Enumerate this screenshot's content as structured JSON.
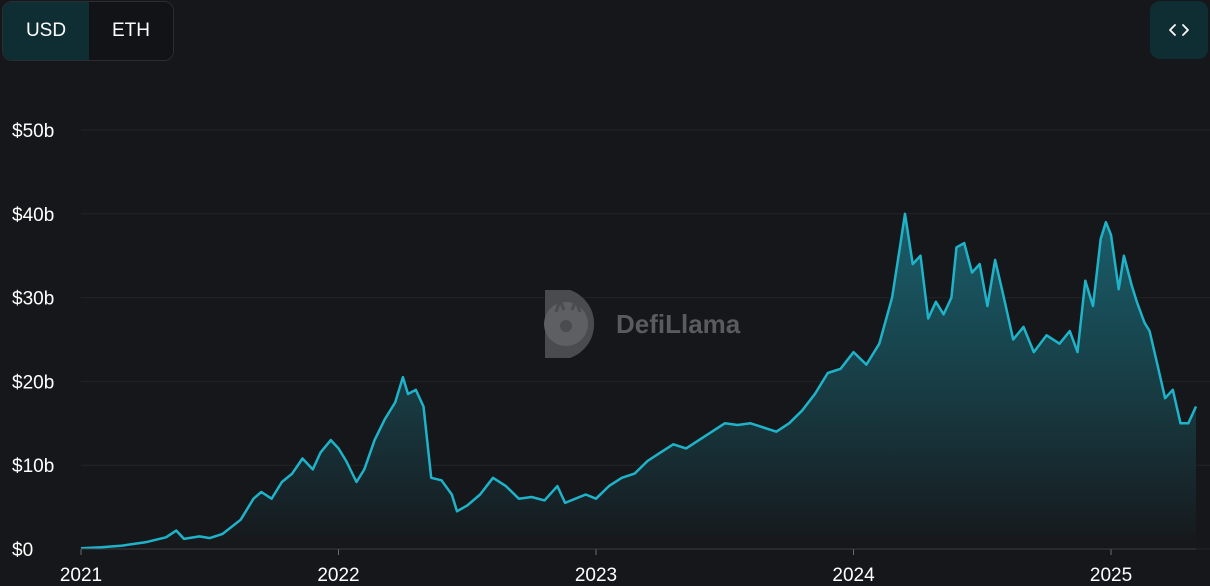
{
  "controls": {
    "currency_options": [
      "USD",
      "ETH"
    ],
    "selected_currency": "USD",
    "embed_icon": "code-brackets-icon"
  },
  "watermark": {
    "text": "DefiLlama",
    "logo_icon": "llama-logo-icon"
  },
  "colors": {
    "background": "#16171a",
    "line": "#1fb3c9",
    "area_top": "#1a6a78",
    "area_bottom": "#16171a",
    "grid": "#232428",
    "toggle_active": "#0f2e33"
  },
  "chart_data": {
    "type": "area",
    "title": "",
    "xlabel": "",
    "ylabel": "",
    "x_ticks": [
      "2021",
      "2022",
      "2023",
      "2024",
      "2025"
    ],
    "y_ticks": [
      "$0",
      "$10b",
      "$20b",
      "$30b",
      "$40b",
      "$50b"
    ],
    "ylim": [
      0,
      50
    ],
    "xlim": [
      2021.0,
      2025.33
    ],
    "grid": true,
    "legend": "none",
    "series": [
      {
        "unit": "billion USD",
        "points": [
          [
            2021.0,
            0.1
          ],
          [
            2021.08,
            0.2
          ],
          [
            2021.16,
            0.4
          ],
          [
            2021.25,
            0.8
          ],
          [
            2021.33,
            1.4
          ],
          [
            2021.37,
            2.2
          ],
          [
            2021.4,
            1.2
          ],
          [
            2021.46,
            1.5
          ],
          [
            2021.5,
            1.3
          ],
          [
            2021.55,
            1.8
          ],
          [
            2021.62,
            3.5
          ],
          [
            2021.67,
            6.0
          ],
          [
            2021.7,
            6.8
          ],
          [
            2021.74,
            6.0
          ],
          [
            2021.78,
            8.0
          ],
          [
            2021.82,
            9.0
          ],
          [
            2021.86,
            10.8
          ],
          [
            2021.9,
            9.5
          ],
          [
            2021.93,
            11.5
          ],
          [
            2021.97,
            13.0
          ],
          [
            2022.0,
            12.0
          ],
          [
            2022.03,
            10.5
          ],
          [
            2022.07,
            8.0
          ],
          [
            2022.1,
            9.5
          ],
          [
            2022.14,
            13.0
          ],
          [
            2022.18,
            15.5
          ],
          [
            2022.22,
            17.5
          ],
          [
            2022.25,
            20.5
          ],
          [
            2022.27,
            18.5
          ],
          [
            2022.3,
            19.0
          ],
          [
            2022.33,
            17.0
          ],
          [
            2022.36,
            8.5
          ],
          [
            2022.4,
            8.2
          ],
          [
            2022.44,
            6.5
          ],
          [
            2022.46,
            4.5
          ],
          [
            2022.5,
            5.2
          ],
          [
            2022.55,
            6.5
          ],
          [
            2022.6,
            8.5
          ],
          [
            2022.65,
            7.5
          ],
          [
            2022.7,
            6.0
          ],
          [
            2022.75,
            6.2
          ],
          [
            2022.8,
            5.8
          ],
          [
            2022.85,
            7.5
          ],
          [
            2022.88,
            5.5
          ],
          [
            2022.92,
            6.0
          ],
          [
            2022.96,
            6.5
          ],
          [
            2023.0,
            6.0
          ],
          [
            2023.05,
            7.5
          ],
          [
            2023.1,
            8.5
          ],
          [
            2023.15,
            9.0
          ],
          [
            2023.2,
            10.5
          ],
          [
            2023.25,
            11.5
          ],
          [
            2023.3,
            12.5
          ],
          [
            2023.35,
            12.0
          ],
          [
            2023.4,
            13.0
          ],
          [
            2023.45,
            14.0
          ],
          [
            2023.5,
            15.0
          ],
          [
            2023.55,
            14.8
          ],
          [
            2023.6,
            15.0
          ],
          [
            2023.65,
            14.5
          ],
          [
            2023.7,
            14.0
          ],
          [
            2023.75,
            15.0
          ],
          [
            2023.8,
            16.5
          ],
          [
            2023.85,
            18.5
          ],
          [
            2023.9,
            21.0
          ],
          [
            2023.95,
            21.5
          ],
          [
            2024.0,
            23.5
          ],
          [
            2024.05,
            22.0
          ],
          [
            2024.1,
            24.5
          ],
          [
            2024.15,
            30.0
          ],
          [
            2024.18,
            36.0
          ],
          [
            2024.2,
            40.0
          ],
          [
            2024.23,
            34.0
          ],
          [
            2024.26,
            35.0
          ],
          [
            2024.29,
            27.5
          ],
          [
            2024.32,
            29.5
          ],
          [
            2024.35,
            28.0
          ],
          [
            2024.38,
            30.0
          ],
          [
            2024.4,
            36.0
          ],
          [
            2024.43,
            36.5
          ],
          [
            2024.46,
            33.0
          ],
          [
            2024.49,
            34.0
          ],
          [
            2024.52,
            29.0
          ],
          [
            2024.55,
            34.5
          ],
          [
            2024.58,
            30.5
          ],
          [
            2024.62,
            25.0
          ],
          [
            2024.66,
            26.5
          ],
          [
            2024.7,
            23.5
          ],
          [
            2024.75,
            25.5
          ],
          [
            2024.8,
            24.5
          ],
          [
            2024.84,
            26.0
          ],
          [
            2024.87,
            23.5
          ],
          [
            2024.9,
            32.0
          ],
          [
            2024.93,
            29.0
          ],
          [
            2024.96,
            37.0
          ],
          [
            2024.98,
            39.0
          ],
          [
            2025.0,
            37.5
          ],
          [
            2025.03,
            31.0
          ],
          [
            2025.05,
            35.0
          ],
          [
            2025.08,
            31.5
          ],
          [
            2025.1,
            29.5
          ],
          [
            2025.13,
            27.0
          ],
          [
            2025.15,
            26.0
          ],
          [
            2025.18,
            22.0
          ],
          [
            2025.21,
            18.0
          ],
          [
            2025.24,
            19.0
          ],
          [
            2025.27,
            15.0
          ],
          [
            2025.3,
            15.0
          ],
          [
            2025.33,
            17.0
          ]
        ]
      }
    ]
  }
}
